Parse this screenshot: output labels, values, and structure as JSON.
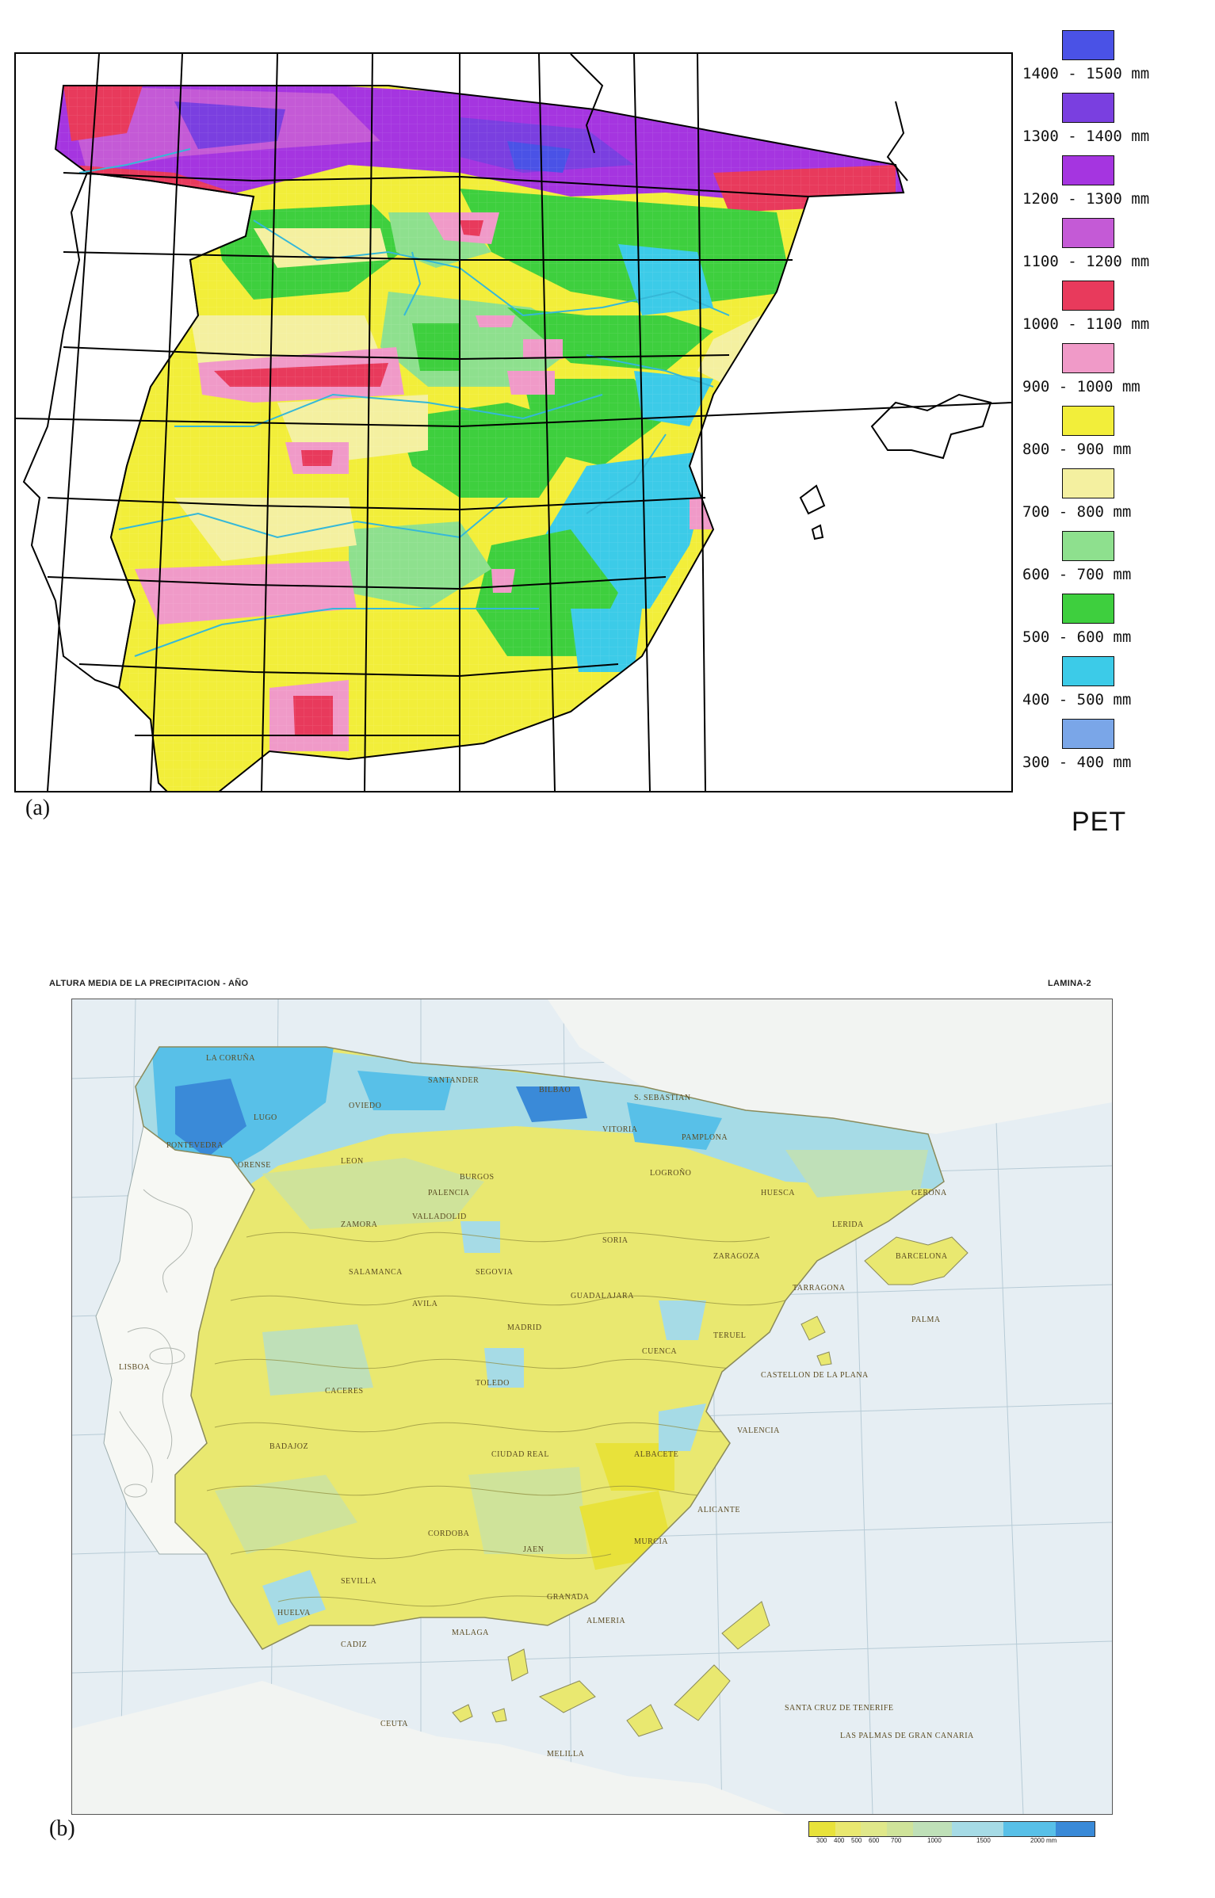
{
  "panel_a": {
    "label": "(a)",
    "title": "PET",
    "legend": [
      {
        "label": "1400 - 1500 mm",
        "color": "#4a52e6"
      },
      {
        "label": "1300 - 1400 mm",
        "color": "#7a3fe0"
      },
      {
        "label": "1200 - 1300 mm",
        "color": "#a535e0"
      },
      {
        "label": "1100 - 1200 mm",
        "color": "#c45ad6"
      },
      {
        "label": "1000 - 1100 mm",
        "color": "#e83a5c"
      },
      {
        "label": "900 - 1000 mm",
        "color": "#f09ac8"
      },
      {
        "label": "800 - 900 mm",
        "color": "#f2ee3a"
      },
      {
        "label": "700 - 800 mm",
        "color": "#f4f0a0"
      },
      {
        "label": "600 - 700 mm",
        "color": "#8ee08e"
      },
      {
        "label": "500 - 600 mm",
        "color": "#3ecf3e"
      },
      {
        "label": "400 - 500 mm",
        "color": "#3ccbe8"
      },
      {
        "label": "300 - 400 mm",
        "color": "#7aa6e8"
      }
    ]
  },
  "panel_b": {
    "label": "(b)",
    "header_left": "ALTURA MEDIA DE LA PRECIPITACION - AÑO",
    "header_right": "LAMINA-2",
    "places": [
      "LA CORUÑA",
      "SANTANDER",
      "BILBAO",
      "S. SEBASTIAN",
      "OVIEDO",
      "LUGO",
      "PONTEVEDRA",
      "ORENSE",
      "LEON",
      "BURGOS",
      "VITORIA",
      "PAMPLONA",
      "LOGROÑO",
      "HUESCA",
      "GERONA",
      "LERIDA",
      "BARCELONA",
      "ZARAGOZA",
      "TARRAGONA",
      "SORIA",
      "VALLADOLID",
      "PALENCIA",
      "ZAMORA",
      "SALAMANCA",
      "SEGOVIA",
      "AVILA",
      "MADRID",
      "GUADALAJARA",
      "CUENCA",
      "TERUEL",
      "CASTELLON DE LA PLANA",
      "VALENCIA",
      "TOLEDO",
      "CACERES",
      "BADAJOZ",
      "CIUDAD REAL",
      "ALBACETE",
      "ALICANTE",
      "MURCIA",
      "CORDOBA",
      "JAEN",
      "SEVILLA",
      "HUELVA",
      "GRANADA",
      "ALMERIA",
      "MALAGA",
      "CADIZ",
      "CEUTA",
      "MELILLA",
      "PALMA",
      "SANTA CRUZ DE TENERIFE",
      "LAS PALMAS DE GRAN CANARIA",
      "LISBOA"
    ],
    "scale_labels": [
      "300",
      "400",
      "500",
      "600",
      "700",
      "1000",
      "1500",
      "2000 mm"
    ],
    "scale_colors": [
      "#e8e23a",
      "#e9e870",
      "#e0e88a",
      "#cfe39a",
      "#bfe0b8",
      "#a6dbe6",
      "#58c0e8",
      "#3a8ad8"
    ]
  }
}
